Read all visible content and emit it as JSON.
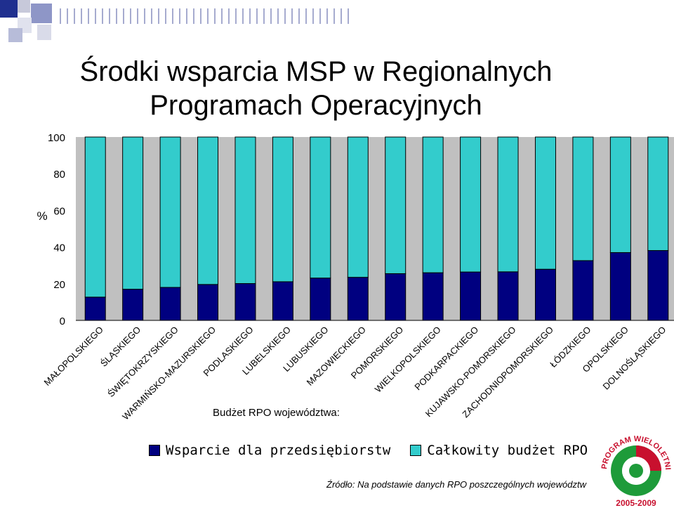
{
  "header": {
    "title_line1": "Środki wsparcia MSP w Regionalnych",
    "title_line2": "Programach Operacyjnych"
  },
  "chart_data": {
    "type": "bar",
    "stacked": true,
    "ylabel": "%",
    "ylim": [
      0,
      100
    ],
    "yticks": [
      0,
      20,
      40,
      60,
      80,
      100
    ],
    "grid": false,
    "categories": [
      "MAŁOPOLSKIEGO",
      "ŚLĄSKIEGO",
      "ŚWIĘTOKRZYSKIEGO",
      "WARMIŃSKO-MAZURSKIEGO",
      "PODLASKIEGO",
      "LUBELSKIEGO",
      "LUBUSKIEGO",
      "MAZOWIECKIEGO",
      "POMORSKIEGO",
      "WIELKOPOLSKIEGO",
      "PODKARPACKIEGO",
      "KUJAWSKO-POMORSKIEGO",
      "ZACHODNIOPOMORSKIEGO",
      "ŁÓDZKIEGO",
      "OPOLSKIEGO",
      "DOLNOŚLĄSKIEGO"
    ],
    "series": [
      {
        "name": "Wsparcie dla przedsiębiorstw",
        "color": "#000080",
        "values": [
          12.7,
          17.0,
          18.0,
          19.6,
          20.1,
          21.1,
          23.1,
          23.5,
          25.5,
          26.0,
          26.4,
          26.5,
          27.9,
          32.6,
          37.0,
          38.1
        ]
      },
      {
        "name": "Całkowity budżet RPO",
        "color": "#33CCCC",
        "values": [
          87.3,
          83.0,
          82.0,
          80.4,
          79.9,
          78.9,
          76.9,
          76.5,
          74.5,
          74.0,
          73.6,
          73.5,
          72.1,
          67.4,
          63.0,
          61.9
        ]
      }
    ],
    "legend_position": "bottom",
    "xaxis_note": "Budżet RPO województwa:"
  },
  "legend": {
    "item1": "Wsparcie dla przedsiębiorstw",
    "item2": "Całkowity budżet RPO"
  },
  "source": "Źródło: Na podstawie danych RPO poszczególnych województw",
  "logo": {
    "text_top": "PROGRAM WIELOLETNI",
    "text_bottom": "2005-2009",
    "colors": [
      "#C8102E",
      "#1E9B3A",
      "#ffffff"
    ]
  }
}
